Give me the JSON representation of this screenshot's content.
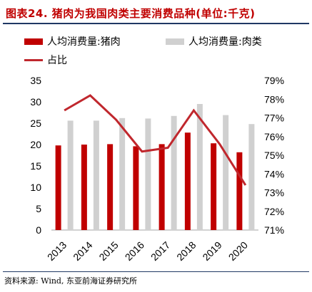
{
  "title": "图表24. 猪肉为我国肉类主要消费品种(单位:千克)",
  "source": "资料来源: Wind, 东亚前海证券研究所",
  "colors": {
    "pork": "#c00000",
    "meat": "#d0d0d0",
    "share": "#c0272d",
    "title": "#c00000",
    "rule": "#1f3864"
  },
  "chart_data": {
    "type": "bar",
    "categories": [
      "2013",
      "2014",
      "2015",
      "2016",
      "2017",
      "2018",
      "2019",
      "2020"
    ],
    "series": [
      {
        "name": "人均消费量:猪肉",
        "type": "bar",
        "axis": "left",
        "values": [
          19.8,
          20.0,
          20.1,
          19.6,
          20.1,
          22.8,
          20.3,
          18.2
        ]
      },
      {
        "name": "人均消费量:肉类",
        "type": "bar",
        "axis": "left",
        "values": [
          25.6,
          25.6,
          26.2,
          26.1,
          26.7,
          29.5,
          26.9,
          24.8
        ]
      },
      {
        "name": "占比",
        "type": "line",
        "axis": "right",
        "values": [
          77.4,
          78.2,
          76.9,
          75.2,
          75.4,
          77.4,
          75.6,
          73.4
        ]
      }
    ],
    "y_left": {
      "min": 0,
      "max": 35,
      "ticks": [
        "0",
        "5",
        "10",
        "15",
        "20",
        "25",
        "30",
        "35"
      ]
    },
    "y_right": {
      "min": 71,
      "max": 79,
      "ticks": [
        "71%",
        "72%",
        "73%",
        "74%",
        "75%",
        "76%",
        "77%",
        "78%",
        "79%"
      ]
    },
    "grid": false,
    "legend_position": "top"
  }
}
